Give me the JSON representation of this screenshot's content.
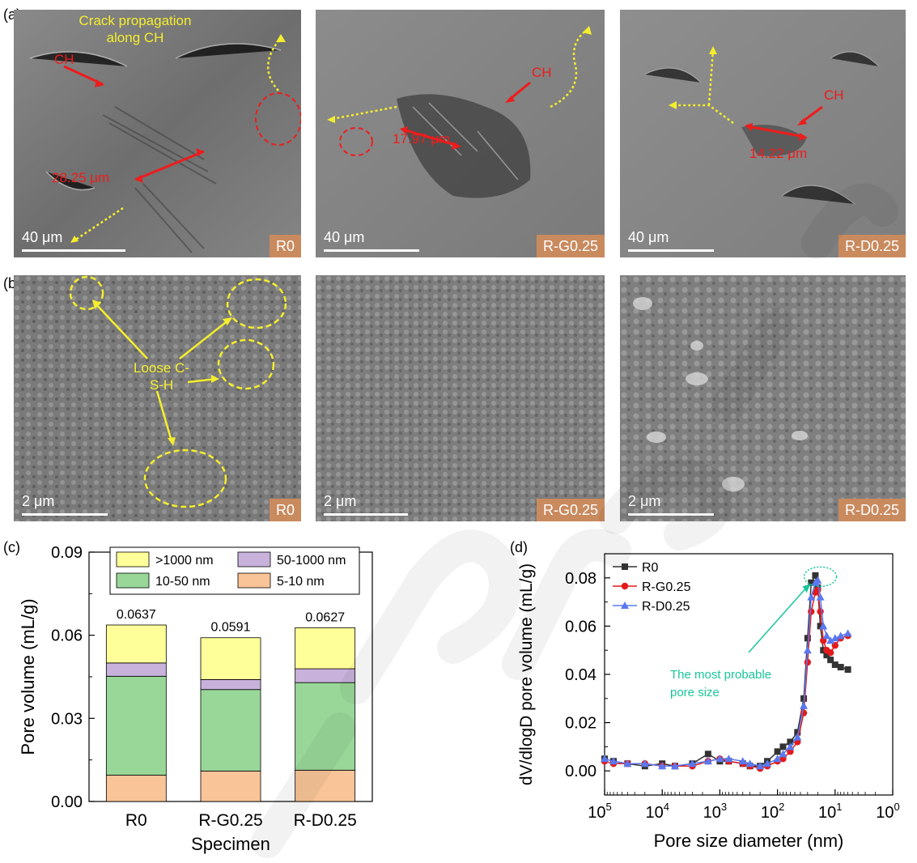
{
  "panel_a": {
    "letter": "(a)",
    "images": [
      {
        "tag": "R0",
        "scale": "40 μm",
        "labels": {
          "ch": "CH",
          "measure": "28.25 μm",
          "crack": "Crack propagation along CH"
        }
      },
      {
        "tag": "R-G0.25",
        "scale": "40 μm",
        "labels": {
          "ch": "CH",
          "measure": "17.97 μm"
        }
      },
      {
        "tag": "R-D0.25",
        "scale": "40 μm",
        "labels": {
          "ch": "CH",
          "measure": "14.22 μm"
        }
      }
    ]
  },
  "panel_b": {
    "letter": "(b)",
    "images": [
      {
        "tag": "R0",
        "scale": "2 μm",
        "labels": {
          "csh": "Loose C-S-H"
        }
      },
      {
        "tag": "R-G0.25",
        "scale": "2 μm"
      },
      {
        "tag": "R-D0.25",
        "scale": "2 μm"
      }
    ]
  },
  "colors": {
    "yellow": "#f4ee2c",
    "red": "#ee1c1c",
    "tag_bg": "#c98a5e",
    "seg_gt1000": "#ffff99",
    "seg_50_1000": "#c8b2dc",
    "seg_10_50": "#99d799",
    "seg_5_10": "#f9c497",
    "R0": "#333333",
    "R-G0.25": "#e31a1c",
    "R-D0.25": "#5a78f0",
    "probable": "#19c69a"
  },
  "chart_data": [
    {
      "panel": "(c)",
      "type": "bar",
      "stacked": true,
      "xlabel": "Specimen",
      "ylabel": "Pore volume (mL/g)",
      "ylim": [
        0,
        0.09
      ],
      "yticks": [
        "0.00",
        "0.03",
        "0.06",
        "0.09"
      ],
      "categories": [
        "R0",
        "R-G0.25",
        "R-D0.25"
      ],
      "totals": [
        "0.0637",
        "0.0591",
        "0.0627"
      ],
      "series": [
        {
          "name": "5-10 nm",
          "values": [
            0.0095,
            0.011,
            0.0113
          ]
        },
        {
          "name": "10-50 nm",
          "values": [
            0.0357,
            0.0294,
            0.0316
          ]
        },
        {
          "name": "50-1000 nm",
          "values": [
            0.0048,
            0.0036,
            0.005
          ]
        },
        {
          "name": ">1000 nm",
          "values": [
            0.0137,
            0.0151,
            0.0148
          ]
        }
      ],
      "legend": "top"
    },
    {
      "panel": "(d)",
      "type": "line",
      "xlabel": "Pore size diameter (nm)",
      "ylabel": "dV/dlogD pore volume (mL/g)",
      "x_scale": "log-reversed",
      "xlim": [
        100000,
        1
      ],
      "ylim": [
        -0.01,
        0.09
      ],
      "yticks": [
        "0.00",
        "0.02",
        "0.04",
        "0.06",
        "0.08"
      ],
      "xticks": [
        {
          "base": "10",
          "exp": "5"
        },
        {
          "base": "10",
          "exp": "4"
        },
        {
          "base": "10",
          "exp": "3"
        },
        {
          "base": "10",
          "exp": "2"
        },
        {
          "base": "10",
          "exp": "1"
        },
        {
          "base": "10",
          "exp": "0"
        }
      ],
      "annotation": "The most probable pore size",
      "series": [
        {
          "name": "R0",
          "marker": "square",
          "x": [
            100000,
            70000,
            40000,
            20000,
            10000,
            6000,
            3000,
            1600,
            1000,
            700,
            400,
            300,
            200,
            150,
            100,
            80,
            60,
            45,
            35,
            30,
            26,
            22,
            20,
            18,
            16,
            14,
            12,
            10,
            8,
            6
          ],
          "y": [
            0.005,
            0.004,
            0.003,
            0.002,
            0.003,
            0.002,
            0.003,
            0.007,
            0.004,
            0.004,
            0.003,
            0.002,
            0.002,
            0.004,
            0.008,
            0.01,
            0.012,
            0.016,
            0.03,
            0.055,
            0.078,
            0.081,
            0.076,
            0.06,
            0.05,
            0.048,
            0.046,
            0.044,
            0.043,
            0.042
          ]
        },
        {
          "name": "R-G0.25",
          "marker": "circle",
          "x": [
            100000,
            70000,
            40000,
            20000,
            10000,
            6000,
            3000,
            1600,
            1000,
            700,
            400,
            300,
            200,
            150,
            100,
            80,
            60,
            45,
            35,
            30,
            26,
            22,
            20,
            18,
            16,
            14,
            12,
            10,
            8,
            6
          ],
          "y": [
            0.004,
            0.003,
            0.003,
            0.003,
            0.002,
            0.002,
            0.002,
            0.004,
            0.005,
            0.004,
            0.003,
            0.002,
            0.001,
            0.002,
            0.004,
            0.005,
            0.008,
            0.012,
            0.024,
            0.045,
            0.066,
            0.074,
            0.075,
            0.066,
            0.054,
            0.05,
            0.049,
            0.052,
            0.055,
            0.056
          ]
        },
        {
          "name": "R-D0.25",
          "marker": "triangle",
          "x": [
            100000,
            70000,
            40000,
            20000,
            10000,
            6000,
            3000,
            1600,
            1000,
            700,
            400,
            300,
            200,
            150,
            100,
            80,
            60,
            45,
            35,
            30,
            26,
            22,
            20,
            18,
            16,
            14,
            12,
            10,
            8,
            6
          ],
          "y": [
            0.005,
            0.004,
            0.003,
            0.003,
            0.002,
            0.002,
            0.003,
            0.004,
            0.005,
            0.005,
            0.004,
            0.003,
            0.002,
            0.003,
            0.005,
            0.007,
            0.01,
            0.014,
            0.027,
            0.05,
            0.072,
            0.078,
            0.079,
            0.072,
            0.06,
            0.056,
            0.054,
            0.055,
            0.056,
            0.057
          ]
        }
      ],
      "legend": "top-left"
    }
  ]
}
